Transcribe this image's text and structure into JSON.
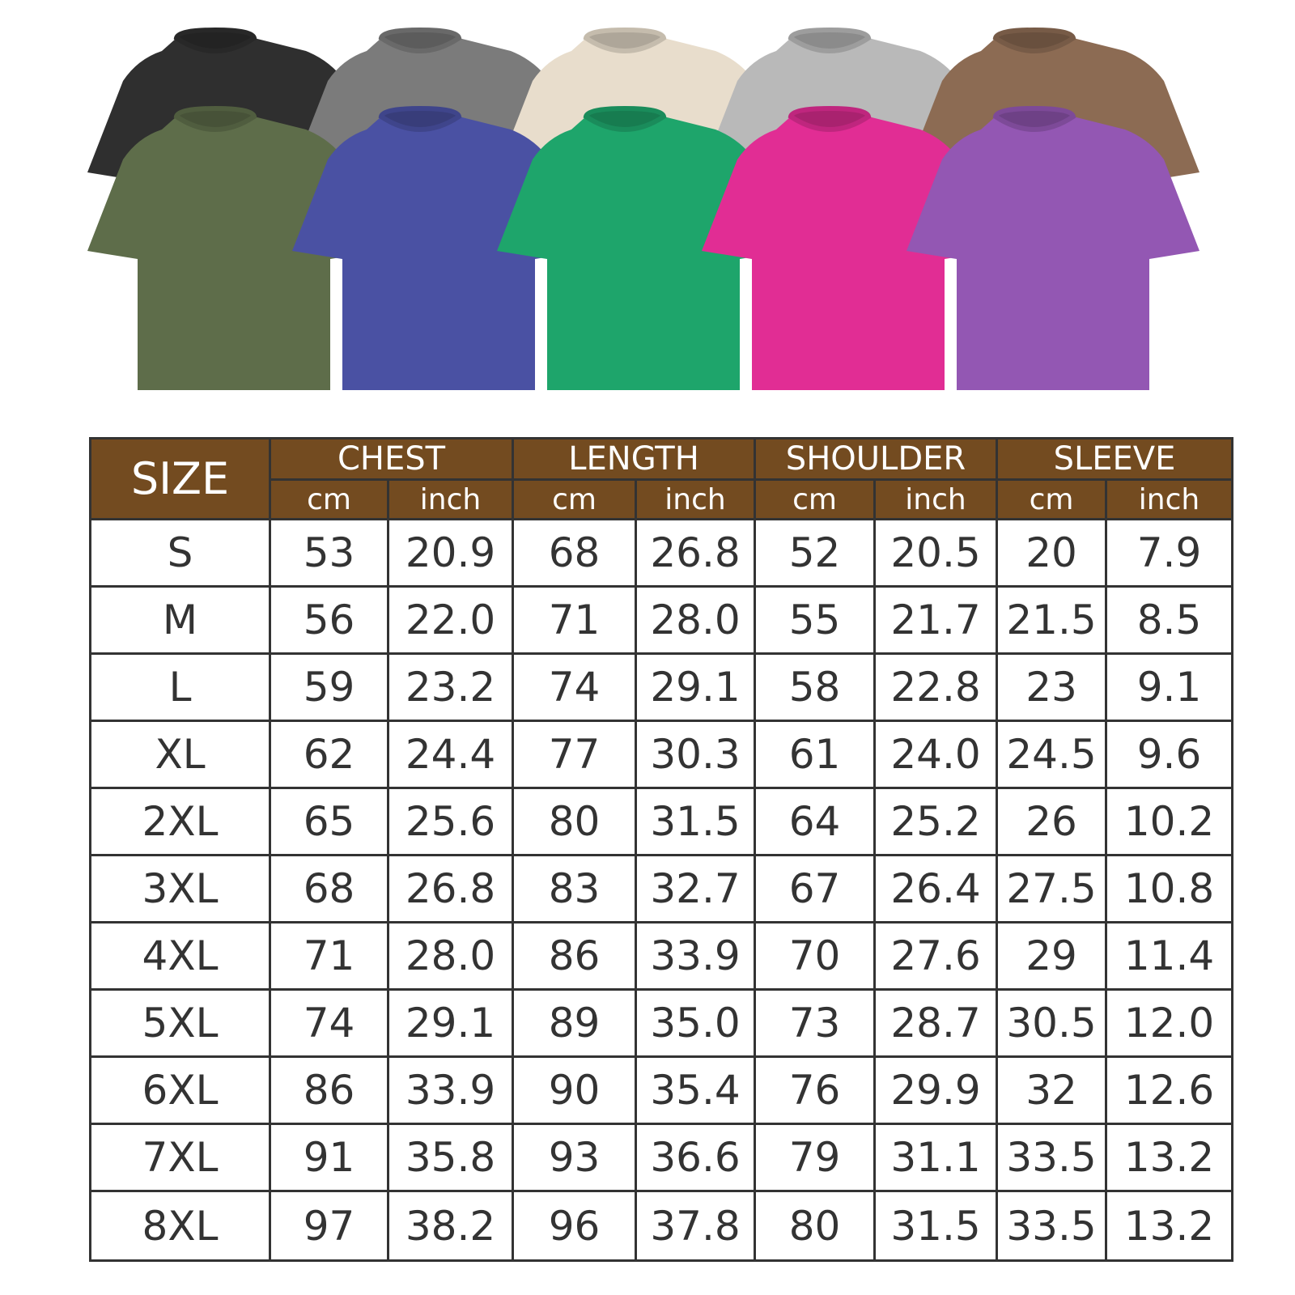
{
  "shirts": {
    "back_colors": [
      "#2f2f2f",
      "#7b7b7b",
      "#e8ddcc",
      "#b9b9b9",
      "#8c6b53"
    ],
    "front_colors": [
      "#5e6d4a",
      "#4a51a3",
      "#1ea56b",
      "#e12d94",
      "#9357b3"
    ]
  },
  "colors": {
    "header_bg": "#734b20",
    "grid": "#333333"
  },
  "table": {
    "size_header": "SIZE",
    "groups": [
      "CHEST",
      "LENGTH",
      "SHOULDER",
      "SLEEVE"
    ],
    "unit_cm": "cm",
    "unit_inch": "inch",
    "rows": [
      [
        "S",
        "53",
        "20.9",
        "68",
        "26.8",
        "52",
        "20.5",
        "20",
        "7.9"
      ],
      [
        "M",
        "56",
        "22.0",
        "71",
        "28.0",
        "55",
        "21.7",
        "21.5",
        "8.5"
      ],
      [
        "L",
        "59",
        "23.2",
        "74",
        "29.1",
        "58",
        "22.8",
        "23",
        "9.1"
      ],
      [
        "XL",
        "62",
        "24.4",
        "77",
        "30.3",
        "61",
        "24.0",
        "24.5",
        "9.6"
      ],
      [
        "2XL",
        "65",
        "25.6",
        "80",
        "31.5",
        "64",
        "25.2",
        "26",
        "10.2"
      ],
      [
        "3XL",
        "68",
        "26.8",
        "83",
        "32.7",
        "67",
        "26.4",
        "27.5",
        "10.8"
      ],
      [
        "4XL",
        "71",
        "28.0",
        "86",
        "33.9",
        "70",
        "27.6",
        "29",
        "11.4"
      ],
      [
        "5XL",
        "74",
        "29.1",
        "89",
        "35.0",
        "73",
        "28.7",
        "30.5",
        "12.0"
      ],
      [
        "6XL",
        "86",
        "33.9",
        "90",
        "35.4",
        "76",
        "29.9",
        "32",
        "12.6"
      ],
      [
        "7XL",
        "91",
        "35.8",
        "93",
        "36.6",
        "79",
        "31.1",
        "33.5",
        "13.2"
      ],
      [
        "8XL",
        "97",
        "38.2",
        "96",
        "37.8",
        "80",
        "31.5",
        "33.5",
        "13.2"
      ]
    ]
  }
}
